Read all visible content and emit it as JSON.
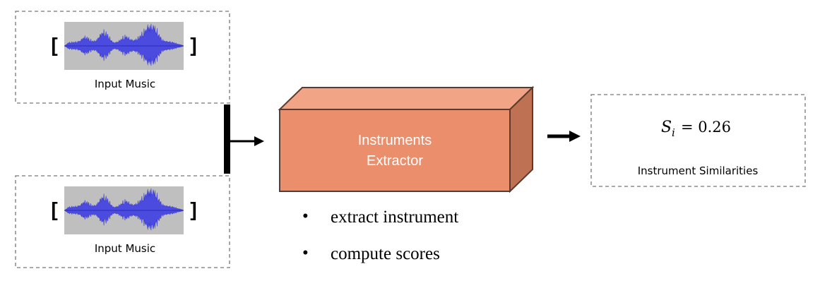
{
  "inputs": [
    {
      "label": "Input Music",
      "open_bracket": "[",
      "close_bracket": "]"
    },
    {
      "label": "Input Music",
      "open_bracket": "[",
      "close_bracket": "]"
    }
  ],
  "extractor": {
    "line1": "Instruments",
    "line2": "Extractor"
  },
  "steps": [
    {
      "bullet": "•",
      "text": "extract instrument"
    },
    {
      "bullet": "•",
      "text": "compute scores"
    }
  ],
  "output": {
    "symbol": "S",
    "subscript": "i",
    "equals": "= 0.26",
    "label": "Instrument Similarities"
  },
  "colors": {
    "box_front": "#EB8E6B",
    "box_top": "#F1A486",
    "box_side": "#BF7153",
    "box_edge": "#5C3A2E",
    "waveform_bg": "#BFBFBF",
    "waveform": "#4B4BE0"
  }
}
